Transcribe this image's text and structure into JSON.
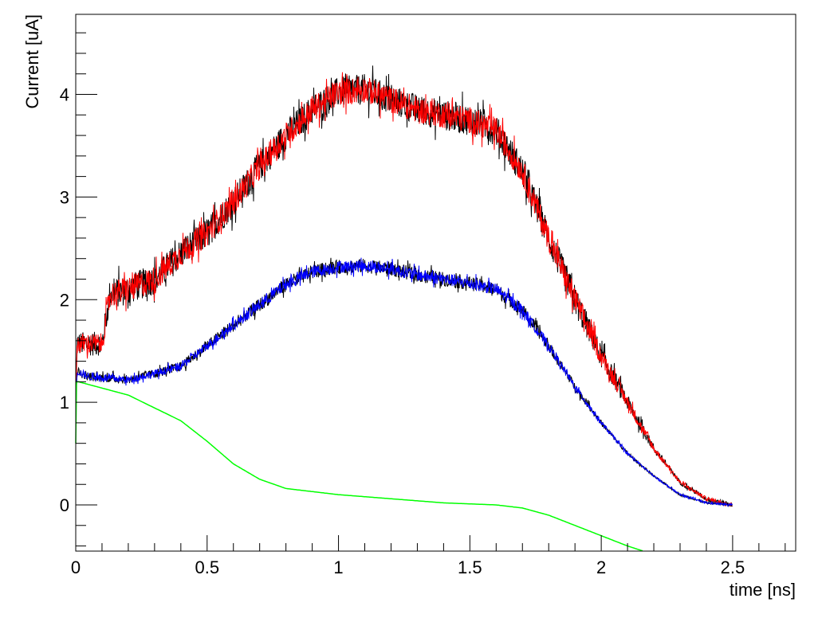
{
  "chart_data": {
    "type": "line",
    "title": "",
    "xlabel": "time [ns]",
    "ylabel": "Current [uA]",
    "xlim": [
      0,
      2.74
    ],
    "ylim": [
      -0.45,
      4.78
    ],
    "x_ticks": [
      "0",
      "0.5",
      "1",
      "1.5",
      "2",
      "2.5"
    ],
    "x_tick_values": [
      0,
      0.5,
      1,
      1.5,
      2,
      2.5
    ],
    "y_ticks": [
      "0",
      "1",
      "2",
      "3",
      "4"
    ],
    "y_tick_values": [
      0,
      1,
      2,
      3,
      4
    ],
    "grid": false,
    "legend": "none",
    "series": [
      {
        "color": "#ff0000",
        "noise": 0.13,
        "x": [
          0,
          0.005,
          0.1,
          0.13,
          0.2,
          0.3,
          0.4,
          0.5,
          0.6,
          0.7,
          0.8,
          0.9,
          1.0,
          1.1,
          1.2,
          1.3,
          1.4,
          1.5,
          1.6,
          1.7,
          1.8,
          1.9,
          2.0,
          2.1,
          2.2,
          2.3,
          2.4,
          2.5
        ],
        "y": [
          1.0,
          1.57,
          1.57,
          2.05,
          2.1,
          2.2,
          2.45,
          2.65,
          2.95,
          3.3,
          3.6,
          3.85,
          4.02,
          4.05,
          3.95,
          3.85,
          3.8,
          3.75,
          3.65,
          3.25,
          2.6,
          2.0,
          1.45,
          1.0,
          0.55,
          0.22,
          0.06,
          0.0
        ]
      },
      {
        "color": "#0000ff",
        "noise": 0.06,
        "x": [
          0,
          0.005,
          0.05,
          0.2,
          0.3,
          0.4,
          0.5,
          0.6,
          0.7,
          0.8,
          0.9,
          1.0,
          1.1,
          1.2,
          1.3,
          1.4,
          1.5,
          1.6,
          1.7,
          1.8,
          1.9,
          2.0,
          2.1,
          2.2,
          2.3,
          2.4,
          2.5
        ],
        "y": [
          1.0,
          1.3,
          1.25,
          1.22,
          1.28,
          1.35,
          1.55,
          1.75,
          1.95,
          2.15,
          2.27,
          2.32,
          2.33,
          2.3,
          2.24,
          2.2,
          2.16,
          2.1,
          1.9,
          1.55,
          1.15,
          0.8,
          0.5,
          0.28,
          0.1,
          0.02,
          0.0
        ]
      },
      {
        "color": "#00ff00",
        "noise": 0.0,
        "x": [
          0,
          0.003,
          0.01,
          0.2,
          0.4,
          0.5,
          0.6,
          0.7,
          0.8,
          1.0,
          1.2,
          1.4,
          1.6,
          1.7,
          1.8,
          1.9,
          2.0,
          2.1,
          2.16
        ],
        "y": [
          0.6,
          1.2,
          1.2,
          1.07,
          0.82,
          0.62,
          0.4,
          0.25,
          0.16,
          0.1,
          0.06,
          0.02,
          0.0,
          -0.03,
          -0.1,
          -0.2,
          -0.3,
          -0.4,
          -0.45
        ]
      }
    ]
  }
}
